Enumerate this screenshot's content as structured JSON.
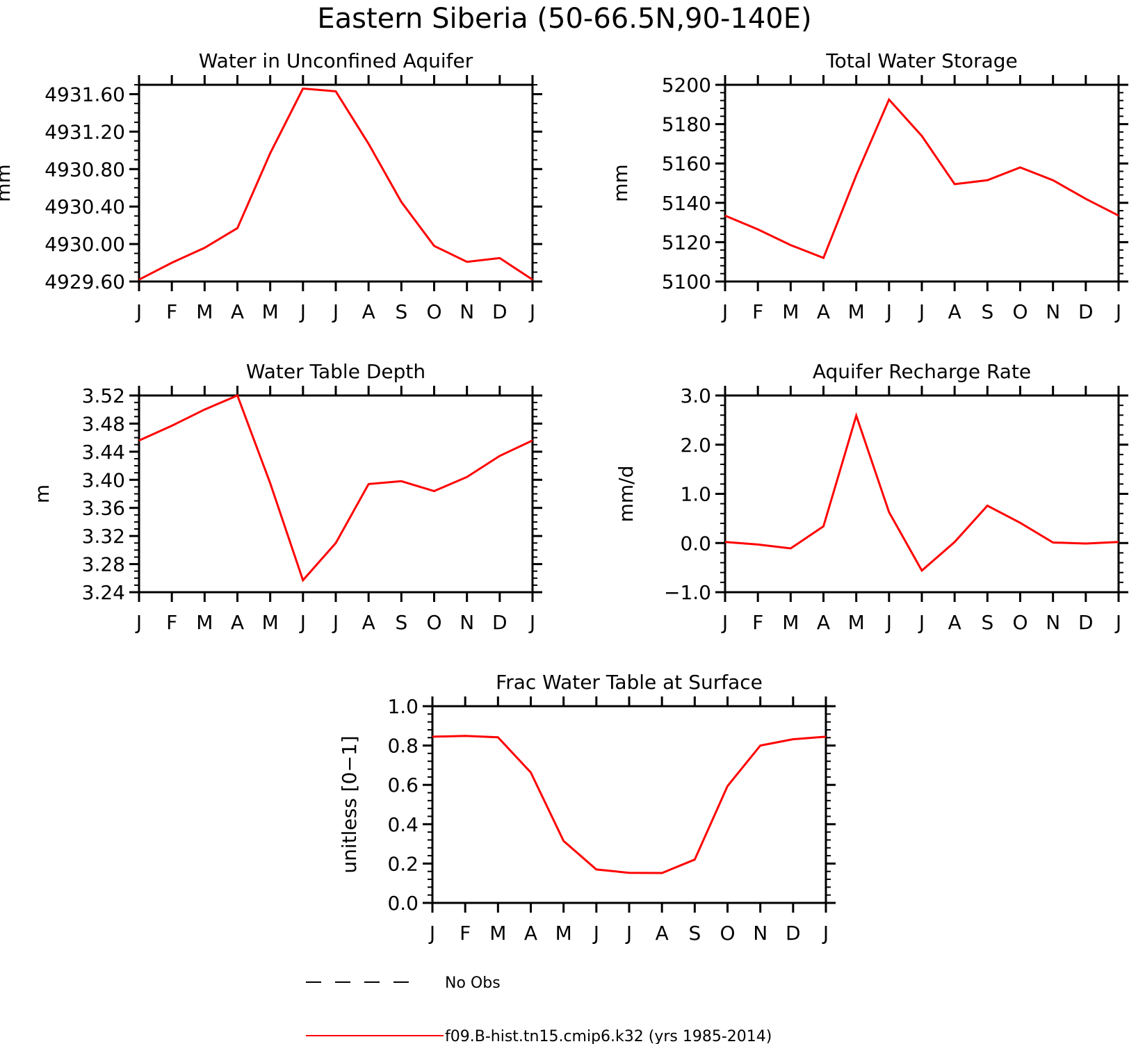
{
  "figure": {
    "title": "Eastern Siberia (50-66.5N,90-140E)",
    "line_color": "#ff0000",
    "axis_color": "#000000"
  },
  "legend": {
    "entries": [
      {
        "label": "No Obs",
        "style": "dashed",
        "color": "#000000"
      },
      {
        "label": "f09.B-hist.tn15.cmip6.k32 (yrs 1985-2014)",
        "style": "solid",
        "color": "#ff0000"
      }
    ]
  },
  "chart_data": [
    {
      "type": "line",
      "title": "Water in Unconfined Aquifer",
      "ylabel": "mm",
      "categories": [
        "J",
        "F",
        "M",
        "A",
        "M",
        "J",
        "J",
        "A",
        "S",
        "O",
        "N",
        "D",
        "J"
      ],
      "ylim": [
        4929.6,
        4931.7
      ],
      "yticks": [
        "4929.60",
        "4930.00",
        "4930.40",
        "4930.80",
        "4931.20",
        "4931.60"
      ],
      "ytick_values": [
        4929.6,
        4930.0,
        4930.4,
        4930.8,
        4931.2,
        4931.6
      ],
      "minor_step": 0.1,
      "series": [
        {
          "name": "f09.B-hist.tn15.cmip6.k32 (yrs 1985-2014)",
          "values": [
            4929.62,
            4929.8,
            4929.96,
            4930.17,
            4930.97,
            4931.66,
            4931.63,
            4931.07,
            4930.45,
            4929.98,
            4929.81,
            4929.85,
            4929.62
          ]
        }
      ]
    },
    {
      "type": "line",
      "title": "Total Water Storage",
      "ylabel": "mm",
      "categories": [
        "J",
        "F",
        "M",
        "A",
        "M",
        "J",
        "J",
        "A",
        "S",
        "O",
        "N",
        "D",
        "J"
      ],
      "ylim": [
        5100,
        5200
      ],
      "yticks": [
        "5100",
        "5120",
        "5140",
        "5160",
        "5180",
        "5200"
      ],
      "ytick_values": [
        5100,
        5120,
        5140,
        5160,
        5180,
        5200
      ],
      "minor_step": 4,
      "series": [
        {
          "name": "f09.B-hist.tn15.cmip6.k32 (yrs 1985-2014)",
          "values": [
            5133.5,
            5126.5,
            5118.5,
            5112.0,
            5154.0,
            5192.5,
            5174.0,
            5149.5,
            5151.5,
            5158.0,
            5151.5,
            5142.0,
            5133.5
          ]
        }
      ]
    },
    {
      "type": "line",
      "title": "Water Table Depth",
      "ylabel": "m",
      "categories": [
        "J",
        "F",
        "M",
        "A",
        "M",
        "J",
        "J",
        "A",
        "S",
        "O",
        "N",
        "D",
        "J"
      ],
      "ylim": [
        3.24,
        3.52
      ],
      "yticks": [
        "3.24",
        "3.28",
        "3.32",
        "3.36",
        "3.40",
        "3.44",
        "3.48",
        "3.52"
      ],
      "ytick_values": [
        3.24,
        3.28,
        3.32,
        3.36,
        3.4,
        3.44,
        3.48,
        3.52
      ],
      "minor_step": 0.01,
      "series": [
        {
          "name": "f09.B-hist.tn15.cmip6.k32 (yrs 1985-2014)",
          "values": [
            3.456,
            3.477,
            3.5,
            3.52,
            3.395,
            3.257,
            3.31,
            3.394,
            3.398,
            3.384,
            3.404,
            3.434,
            3.456
          ]
        }
      ]
    },
    {
      "type": "line",
      "title": "Aquifer Recharge Rate",
      "ylabel": "mm/d",
      "categories": [
        "J",
        "F",
        "M",
        "A",
        "M",
        "J",
        "J",
        "A",
        "S",
        "O",
        "N",
        "D",
        "J"
      ],
      "ylim": [
        -1.0,
        3.0
      ],
      "yticks": [
        "−1.0",
        "0.0",
        "1.0",
        "2.0",
        "3.0"
      ],
      "ytick_values": [
        -1.0,
        0.0,
        1.0,
        2.0,
        3.0
      ],
      "minor_step": 0.2,
      "series": [
        {
          "name": "f09.B-hist.tn15.cmip6.k32 (yrs 1985-2014)",
          "values": [
            0.02,
            -0.03,
            -0.11,
            0.34,
            2.59,
            0.63,
            -0.56,
            0.02,
            0.76,
            0.41,
            0.01,
            -0.01,
            0.02
          ]
        }
      ]
    },
    {
      "type": "line",
      "title": "Frac Water Table at Surface",
      "ylabel": "unitless [0−1]",
      "categories": [
        "J",
        "F",
        "M",
        "A",
        "M",
        "J",
        "J",
        "A",
        "S",
        "O",
        "N",
        "D",
        "J"
      ],
      "ylim": [
        0.0,
        1.0
      ],
      "yticks": [
        "0.0",
        "0.2",
        "0.4",
        "0.6",
        "0.8",
        "1.0"
      ],
      "ytick_values": [
        0.0,
        0.2,
        0.4,
        0.6,
        0.8,
        1.0
      ],
      "minor_step": 0.04,
      "series": [
        {
          "name": "f09.B-hist.tn15.cmip6.k32 (yrs 1985-2014)",
          "values": [
            0.845,
            0.849,
            0.842,
            0.663,
            0.315,
            0.17,
            0.153,
            0.152,
            0.22,
            0.594,
            0.8,
            0.832,
            0.845
          ]
        }
      ]
    }
  ]
}
